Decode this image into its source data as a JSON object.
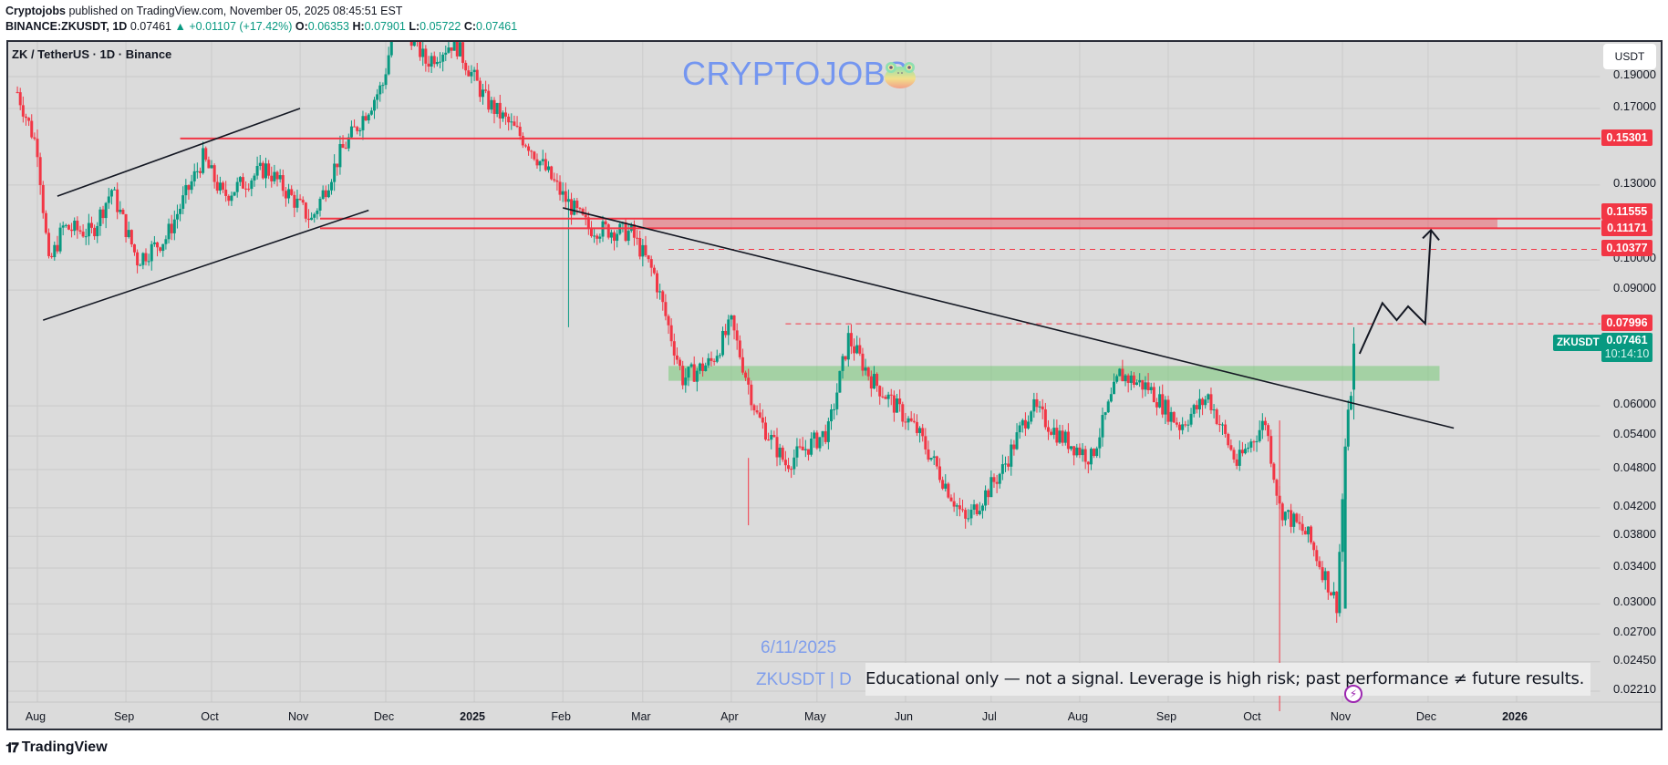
{
  "header": {
    "author": "Cryptojobs",
    "published_text": "published on TradingView.com, November 05, 2025 08:45:51 EST",
    "symbol_line": "BINANCE:ZKUSDT, 1D",
    "last": "0.07461",
    "change": "+0.01107 (+17.42%)",
    "open_label": "O:",
    "open": "0.06353",
    "high_label": "H:",
    "high": "0.07901",
    "low_label": "L:",
    "low": "0.05722",
    "close_label": "C:",
    "close": "0.07461"
  },
  "legend": {
    "title": "ZK / TetherUS · 1D · Binance"
  },
  "watermark": {
    "text": "CRYPTOJOBS",
    "icon": "frog-emoji-icon"
  },
  "currency_button": "USDT",
  "price_axis": {
    "labels": [
      "0.19000",
      "0.17000",
      "0.13000",
      "0.10000",
      "0.09000",
      "0.06000",
      "0.05400",
      "0.04800",
      "0.04200",
      "0.03800",
      "0.03400",
      "0.03000",
      "0.02700",
      "0.02450",
      "0.02210"
    ],
    "tags": [
      {
        "value": "0.15301",
        "color": "#f23645"
      },
      {
        "value": "0.11555",
        "color": "#f23645"
      },
      {
        "value": "0.11171",
        "color": "#f23645"
      },
      {
        "value": "0.10377",
        "color": "#f23645"
      },
      {
        "value": "0.07996",
        "color": "#f23645"
      }
    ],
    "current": {
      "symbol": "ZKUSDT",
      "price": "0.07461",
      "countdown": "10:14:10",
      "color": "#089981"
    }
  },
  "time_axis": {
    "labels": [
      "Aug",
      "Sep",
      "Oct",
      "Nov",
      "Dec",
      "2025",
      "Feb",
      "Mar",
      "Apr",
      "May",
      "Jun",
      "Jul",
      "Aug",
      "Sep",
      "Oct",
      "Nov",
      "Dec",
      "2026"
    ]
  },
  "annotations": {
    "date_note": "6/11/2025",
    "symbol_note": "ZKUSDT | D",
    "disclaimer": "Educational only — not a signal. Leverage is high risk; past performance ≠ future results."
  },
  "footer": {
    "brand": "TradingView"
  },
  "colors": {
    "up": "#089981",
    "down": "#f23645",
    "background": "#dbdbdb",
    "zone_red": "#f2364566",
    "zone_green": "#7fc97f",
    "watermark": "#7496f0"
  },
  "chart_data": {
    "type": "candlestick",
    "title": "ZK / TetherUS · 1D · Binance",
    "symbol": "BINANCE:ZKUSDT",
    "timeframe": "1D",
    "y_scale": "log",
    "ylim": [
      0.0205,
      0.205
    ],
    "x_range": [
      "2024-07-25",
      "2026-01-20"
    ],
    "xticks": [
      "Aug",
      "Sep",
      "Oct",
      "Nov",
      "Dec",
      "2025",
      "Feb",
      "Mar",
      "Apr",
      "May",
      "Jun",
      "Jul",
      "Aug",
      "Sep",
      "Oct",
      "Nov",
      "Dec",
      "2026"
    ],
    "yticks": [
      0.19,
      0.17,
      0.13,
      0.1,
      0.09,
      0.06,
      0.054,
      0.048,
      0.042,
      0.038,
      0.034,
      0.03,
      0.027,
      0.0245,
      0.0221
    ],
    "price_path": [
      {
        "date": "2024-07-25",
        "price": 0.18
      },
      {
        "date": "2024-08-01",
        "price": 0.148
      },
      {
        "date": "2024-08-05",
        "price": 0.098
      },
      {
        "date": "2024-08-10",
        "price": 0.112
      },
      {
        "date": "2024-08-20",
        "price": 0.11
      },
      {
        "date": "2024-08-27",
        "price": 0.128
      },
      {
        "date": "2024-09-05",
        "price": 0.1
      },
      {
        "date": "2024-09-15",
        "price": 0.108
      },
      {
        "date": "2024-09-28",
        "price": 0.143
      },
      {
        "date": "2024-10-05",
        "price": 0.125
      },
      {
        "date": "2024-10-20",
        "price": 0.138
      },
      {
        "date": "2024-11-05",
        "price": 0.115
      },
      {
        "date": "2024-11-15",
        "price": 0.145
      },
      {
        "date": "2024-11-30",
        "price": 0.185
      },
      {
        "date": "2024-12-05",
        "price": 0.24
      },
      {
        "date": "2024-12-15",
        "price": 0.2
      },
      {
        "date": "2024-12-25",
        "price": 0.215
      },
      {
        "date": "2025-01-05",
        "price": 0.175
      },
      {
        "date": "2025-01-20",
        "price": 0.15
      },
      {
        "date": "2025-02-01",
        "price": 0.125
      },
      {
        "date": "2025-02-10",
        "price": 0.112
      },
      {
        "date": "2025-02-25",
        "price": 0.11
      },
      {
        "date": "2025-03-05",
        "price": 0.095
      },
      {
        "date": "2025-03-15",
        "price": 0.066
      },
      {
        "date": "2025-03-25",
        "price": 0.07
      },
      {
        "date": "2025-04-01",
        "price": 0.08
      },
      {
        "date": "2025-04-10",
        "price": 0.058
      },
      {
        "date": "2025-04-20",
        "price": 0.049
      },
      {
        "date": "2025-05-05",
        "price": 0.055
      },
      {
        "date": "2025-05-12",
        "price": 0.076
      },
      {
        "date": "2025-05-20",
        "price": 0.066
      },
      {
        "date": "2025-06-05",
        "price": 0.055
      },
      {
        "date": "2025-06-22",
        "price": 0.04
      },
      {
        "date": "2025-07-05",
        "price": 0.048
      },
      {
        "date": "2025-07-15",
        "price": 0.06
      },
      {
        "date": "2025-07-25",
        "price": 0.054
      },
      {
        "date": "2025-08-05",
        "price": 0.05
      },
      {
        "date": "2025-08-15",
        "price": 0.067
      },
      {
        "date": "2025-08-25",
        "price": 0.064
      },
      {
        "date": "2025-09-05",
        "price": 0.056
      },
      {
        "date": "2025-09-15",
        "price": 0.062
      },
      {
        "date": "2025-09-25",
        "price": 0.049
      },
      {
        "date": "2025-10-05",
        "price": 0.057
      },
      {
        "date": "2025-10-10",
        "price": 0.042
      },
      {
        "date": "2025-10-20",
        "price": 0.038
      },
      {
        "date": "2025-10-30",
        "price": 0.03
      },
      {
        "date": "2025-11-02",
        "price": 0.052
      },
      {
        "date": "2025-11-04",
        "price": 0.0635
      },
      {
        "date": "2025-11-05",
        "price": 0.07461
      }
    ],
    "horizontal_levels": [
      {
        "price": 0.15301,
        "style": "solid",
        "color": "#f23645"
      },
      {
        "price": 0.11555,
        "style": "solid",
        "color": "#f23645"
      },
      {
        "price": 0.11171,
        "style": "solid",
        "color": "#f23645"
      },
      {
        "price": 0.10377,
        "style": "dashed",
        "color": "#f23645"
      },
      {
        "price": 0.07996,
        "style": "dashed",
        "color": "#f23645"
      }
    ],
    "zones": [
      {
        "name": "resistance",
        "from": 0.11171,
        "to": 0.11555,
        "color": "#f23645",
        "start": "2025-03-01"
      },
      {
        "name": "support",
        "from": 0.0655,
        "to": 0.069,
        "color": "#7fc97f",
        "start": "2025-03-10",
        "end": "2025-12-05"
      }
    ],
    "trendlines": [
      {
        "name": "channel-upper",
        "from": [
          "2024-08-08",
          0.125
        ],
        "to": [
          "2024-11-01",
          0.17
        ]
      },
      {
        "name": "channel-lower",
        "from": [
          "2024-08-03",
          0.081
        ],
        "to": [
          "2024-11-25",
          0.119
        ]
      },
      {
        "name": "descending-resistance",
        "from": [
          "2025-02-01",
          0.12
        ],
        "to": [
          "2025-12-10",
          0.0555
        ]
      }
    ],
    "projection": [
      [
        "2025-11-07",
        0.072
      ],
      [
        "2025-11-15",
        0.086
      ],
      [
        "2025-11-20",
        0.081
      ],
      [
        "2025-11-24",
        0.085
      ],
      [
        "2025-11-30",
        0.08
      ],
      [
        "2025-12-02",
        0.111
      ]
    ],
    "last": {
      "open": 0.06353,
      "high": 0.07901,
      "low": 0.05722,
      "close": 0.07461,
      "change": 0.01107,
      "change_pct": 17.42
    }
  }
}
